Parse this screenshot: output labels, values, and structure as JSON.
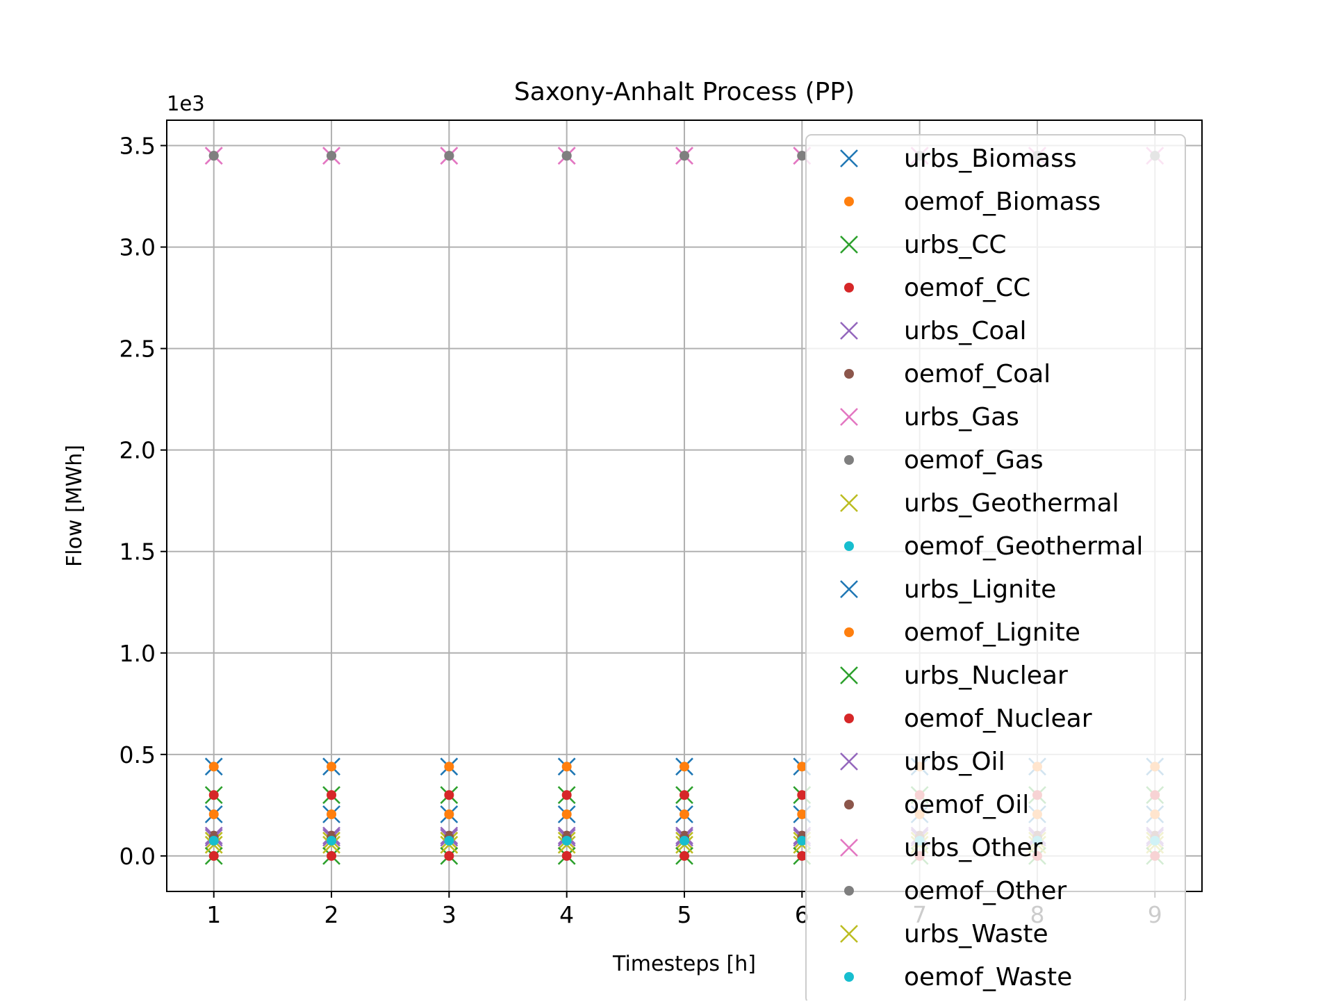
{
  "chart_data": {
    "type": "scatter",
    "title": "Saxony-Anhalt Process (PP)",
    "xlabel": "Timesteps [h]",
    "ylabel": "Flow [MWh]",
    "y_offset_label": "1e3",
    "x": [
      1,
      2,
      3,
      4,
      5,
      6,
      7,
      8,
      9
    ],
    "x_ticks": [
      "1",
      "2",
      "3",
      "4",
      "5",
      "6",
      "7",
      "8",
      "9"
    ],
    "y_ticks": [
      "0.0",
      "0.5",
      "1.0",
      "1.5",
      "2.0",
      "2.5",
      "3.0",
      "3.5"
    ],
    "y_tick_values": [
      0,
      500,
      1000,
      1500,
      2000,
      2500,
      3000,
      3500
    ],
    "xlim": [
      0.6,
      9.4
    ],
    "ylim": [
      -175,
      3625
    ],
    "grid": true,
    "legend_position": "right",
    "series": [
      {
        "name": "urbs_Biomass",
        "marker": "x",
        "color": "#1f77b4",
        "values": [
          440,
          440,
          440,
          440,
          440,
          440,
          440,
          440,
          440
        ]
      },
      {
        "name": "oemof_Biomass",
        "marker": "o",
        "color": "#ff7f0e",
        "values": [
          440,
          440,
          440,
          440,
          440,
          440,
          440,
          440,
          440
        ]
      },
      {
        "name": "urbs_CC",
        "marker": "x",
        "color": "#2ca02c",
        "values": [
          300,
          300,
          300,
          300,
          300,
          300,
          300,
          300,
          300
        ]
      },
      {
        "name": "oemof_CC",
        "marker": "o",
        "color": "#d62728",
        "values": [
          300,
          300,
          300,
          300,
          300,
          300,
          300,
          300,
          300
        ]
      },
      {
        "name": "urbs_Coal",
        "marker": "x",
        "color": "#9467bd",
        "values": [
          100,
          100,
          100,
          100,
          100,
          100,
          100,
          100,
          100
        ]
      },
      {
        "name": "oemof_Coal",
        "marker": "o",
        "color": "#8c564b",
        "values": [
          100,
          100,
          100,
          100,
          100,
          100,
          100,
          100,
          100
        ]
      },
      {
        "name": "urbs_Gas",
        "marker": "x",
        "color": "#e377c2",
        "values": [
          3450,
          3450,
          3450,
          3450,
          3450,
          3450,
          3450,
          3450,
          3450
        ]
      },
      {
        "name": "oemof_Gas",
        "marker": "o",
        "color": "#7f7f7f",
        "values": [
          3450,
          3450,
          3450,
          3450,
          3450,
          3450,
          3450,
          3450,
          3450
        ]
      },
      {
        "name": "urbs_Geothermal",
        "marker": "x",
        "color": "#bcbd22",
        "values": [
          75,
          75,
          75,
          75,
          75,
          75,
          75,
          75,
          75
        ]
      },
      {
        "name": "oemof_Geothermal",
        "marker": "o",
        "color": "#17becf",
        "values": [
          75,
          75,
          75,
          75,
          75,
          75,
          75,
          75,
          75
        ]
      },
      {
        "name": "urbs_Lignite",
        "marker": "x",
        "color": "#1f77b4",
        "values": [
          205,
          205,
          205,
          205,
          205,
          205,
          205,
          205,
          205
        ]
      },
      {
        "name": "oemof_Lignite",
        "marker": "o",
        "color": "#ff7f0e",
        "values": [
          205,
          205,
          205,
          205,
          205,
          205,
          205,
          205,
          205
        ]
      },
      {
        "name": "urbs_Nuclear",
        "marker": "x",
        "color": "#2ca02c",
        "values": [
          0,
          0,
          0,
          0,
          0,
          0,
          0,
          0,
          0
        ]
      },
      {
        "name": "oemof_Nuclear",
        "marker": "o",
        "color": "#d62728",
        "values": [
          0,
          0,
          0,
          0,
          0,
          0,
          0,
          0,
          0
        ]
      },
      {
        "name": "urbs_Oil",
        "marker": "x",
        "color": "#9467bd",
        "values": [
          90,
          90,
          90,
          90,
          90,
          90,
          90,
          90,
          90
        ]
      },
      {
        "name": "oemof_Oil",
        "marker": "o",
        "color": "#8c564b",
        "values": [
          90,
          90,
          90,
          90,
          90,
          90,
          90,
          90,
          90
        ]
      },
      {
        "name": "urbs_Other",
        "marker": "x",
        "color": "#e377c2",
        "values": [
          3450,
          3450,
          3450,
          3450,
          3450,
          3450,
          3450,
          3450,
          3450
        ]
      },
      {
        "name": "oemof_Other",
        "marker": "o",
        "color": "#7f7f7f",
        "values": [
          3450,
          3450,
          3450,
          3450,
          3450,
          3450,
          3450,
          3450,
          3450
        ]
      },
      {
        "name": "urbs_Waste",
        "marker": "x",
        "color": "#bcbd22",
        "values": [
          55,
          55,
          55,
          55,
          55,
          55,
          55,
          55,
          55
        ]
      },
      {
        "name": "oemof_Waste",
        "marker": "o",
        "color": "#17becf",
        "values": [
          75,
          75,
          75,
          75,
          75,
          75,
          75,
          75,
          75
        ]
      }
    ]
  }
}
